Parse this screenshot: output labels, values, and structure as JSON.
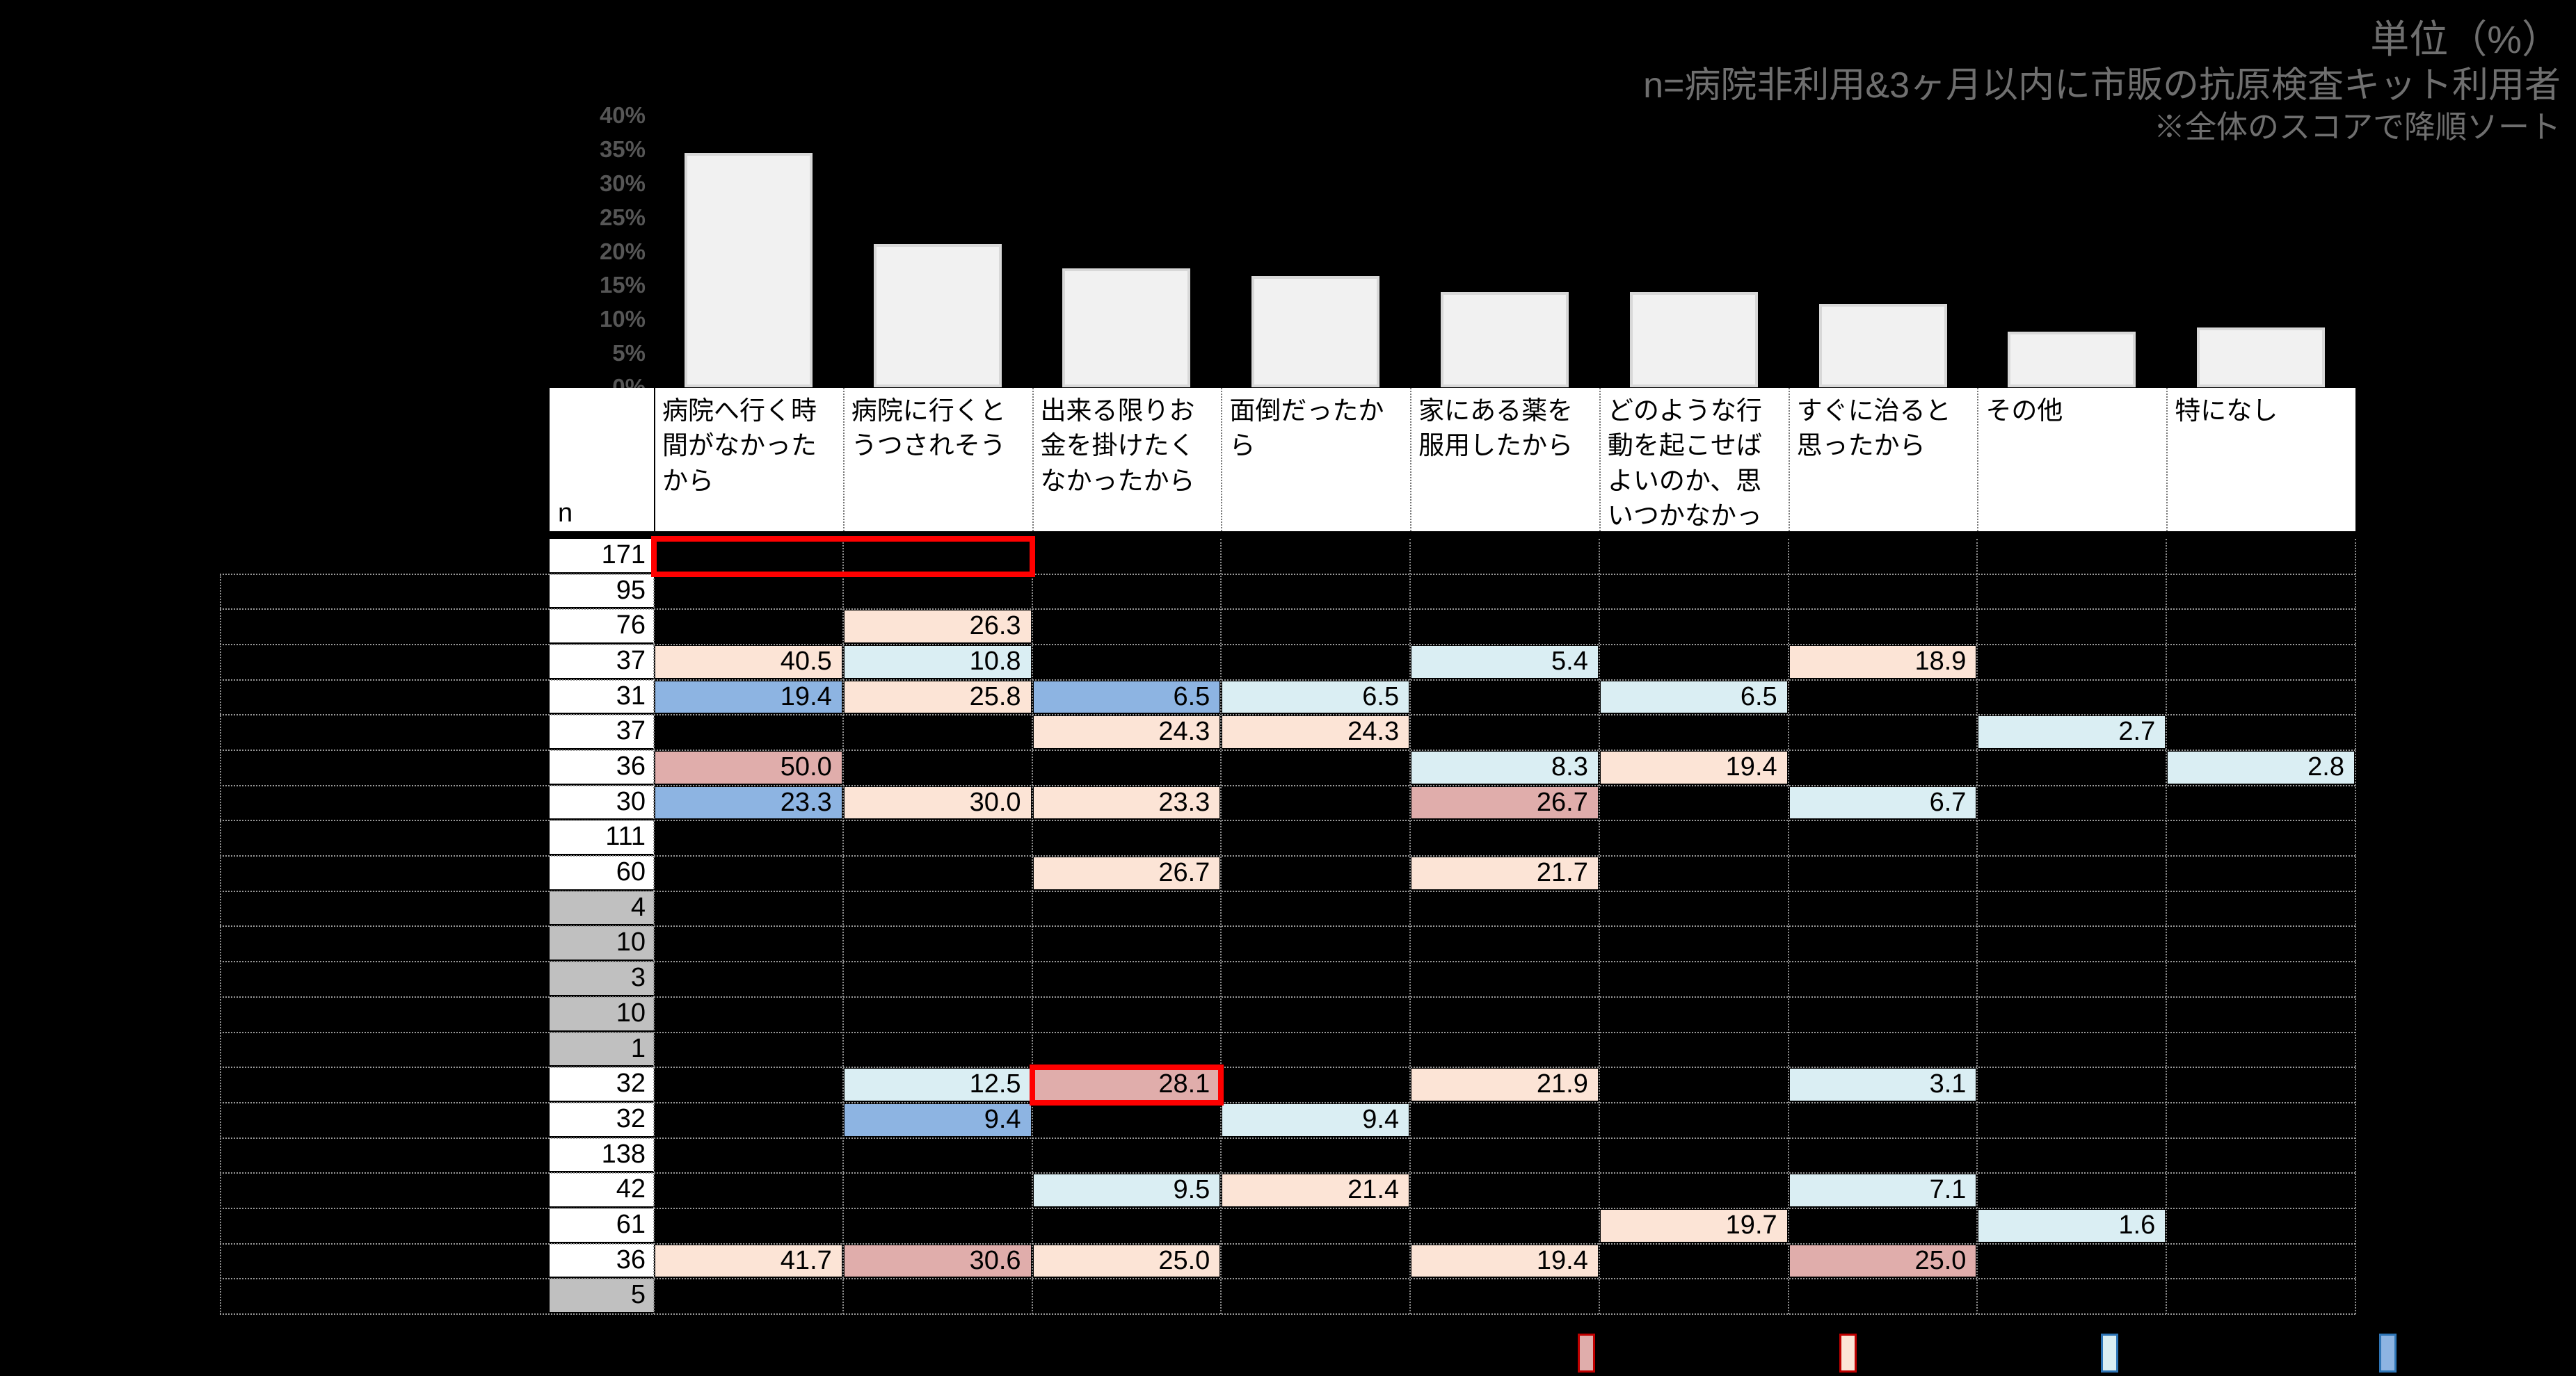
{
  "annotations": {
    "unit": "単位（%）",
    "n_definition": "n=病院非利用&3ヶ月以内に市販の抗原検査キット利用者",
    "sort_note": "※全体のスコアで降順ソート"
  },
  "chart_data": {
    "type": "bar",
    "title": "",
    "categories": [
      "病院へ行く時間がなかったから",
      "病院に行くとうつされそう",
      "出来る限りお金を掛けたくなかったから",
      "面倒だったから",
      "家にある薬を服用したから",
      "どのような行動を起こせばよいのか、思いつかなかったから",
      "すぐに治ると思ったから",
      "その他",
      "特になし"
    ],
    "values": [
      34.5,
      21.1,
      17.5,
      16.4,
      14.0,
      14.0,
      12.3,
      8.2,
      8.8
    ],
    "ylim": [
      0,
      40
    ],
    "yticks": [
      "0%",
      "5%",
      "10%",
      "15%",
      "20%",
      "25%",
      "30%",
      "35%",
      "40%"
    ],
    "bar_color": "#f1f1f1",
    "grid": false,
    "legend_position": "none"
  },
  "palette": {
    "peach": "#fce4d6",
    "lightblue": "#daeef3",
    "blue": "#8db4e2",
    "rose": "#e0adab",
    "gray_n": "#c0c0c0",
    "red_box": "#ff0000"
  },
  "table": {
    "n_header": "n",
    "columns": [
      "病院へ行く時間がなかったから",
      "病院に行くとうつされそう",
      "出来る限りお金を掛けたくなかったから",
      "面倒だったから",
      "家にある薬を服用したから",
      "どのような行動を起こせばよいのか、思いつかなかったから",
      "すぐに治ると思ったから",
      "その他",
      "特になし"
    ],
    "rows": [
      {
        "n": "171",
        "gray": false,
        "cells": []
      },
      {
        "n": "95",
        "gray": false,
        "cells": []
      },
      {
        "n": "76",
        "gray": false,
        "cells": [
          [
            2,
            "26.3",
            "peach"
          ]
        ]
      },
      {
        "n": "37",
        "gray": false,
        "cells": [
          [
            1,
            "40.5",
            "peach"
          ],
          [
            2,
            "10.8",
            "lightblue"
          ],
          [
            5,
            "5.4",
            "lightblue"
          ],
          [
            7,
            "18.9",
            "peach"
          ]
        ]
      },
      {
        "n": "31",
        "gray": false,
        "cells": [
          [
            1,
            "19.4",
            "blue"
          ],
          [
            2,
            "25.8",
            "peach"
          ],
          [
            3,
            "6.5",
            "blue"
          ],
          [
            4,
            "6.5",
            "lightblue"
          ],
          [
            6,
            "6.5",
            "lightblue"
          ]
        ]
      },
      {
        "n": "37",
        "gray": false,
        "cells": [
          [
            3,
            "24.3",
            "peach"
          ],
          [
            4,
            "24.3",
            "peach"
          ],
          [
            8,
            "2.7",
            "lightblue"
          ]
        ]
      },
      {
        "n": "36",
        "gray": false,
        "cells": [
          [
            1,
            "50.0",
            "rose"
          ],
          [
            5,
            "8.3",
            "lightblue"
          ],
          [
            6,
            "19.4",
            "peach"
          ],
          [
            9,
            "2.8",
            "lightblue"
          ]
        ]
      },
      {
        "n": "30",
        "gray": false,
        "cells": [
          [
            1,
            "23.3",
            "blue"
          ],
          [
            2,
            "30.0",
            "peach"
          ],
          [
            3,
            "23.3",
            "peach"
          ],
          [
            5,
            "26.7",
            "rose"
          ],
          [
            7,
            "6.7",
            "lightblue"
          ]
        ]
      },
      {
        "n": "111",
        "gray": false,
        "cells": []
      },
      {
        "n": "60",
        "gray": false,
        "cells": [
          [
            3,
            "26.7",
            "peach"
          ],
          [
            5,
            "21.7",
            "peach"
          ]
        ]
      },
      {
        "n": "4",
        "gray": true,
        "cells": []
      },
      {
        "n": "10",
        "gray": true,
        "cells": []
      },
      {
        "n": "3",
        "gray": true,
        "cells": []
      },
      {
        "n": "10",
        "gray": true,
        "cells": []
      },
      {
        "n": "1",
        "gray": true,
        "cells": []
      },
      {
        "n": "32",
        "gray": false,
        "cells": [
          [
            2,
            "12.5",
            "lightblue"
          ],
          [
            3,
            "28.1",
            "rose"
          ],
          [
            5,
            "21.9",
            "peach"
          ],
          [
            7,
            "3.1",
            "lightblue"
          ]
        ]
      },
      {
        "n": "32",
        "gray": false,
        "cells": [
          [
            2,
            "9.4",
            "blue"
          ],
          [
            4,
            "9.4",
            "lightblue"
          ]
        ]
      },
      {
        "n": "138",
        "gray": false,
        "cells": []
      },
      {
        "n": "42",
        "gray": false,
        "cells": [
          [
            3,
            "9.5",
            "lightblue"
          ],
          [
            4,
            "21.4",
            "peach"
          ],
          [
            7,
            "7.1",
            "lightblue"
          ]
        ]
      },
      {
        "n": "61",
        "gray": false,
        "cells": [
          [
            6,
            "19.7",
            "peach"
          ],
          [
            8,
            "1.6",
            "lightblue"
          ]
        ]
      },
      {
        "n": "36",
        "gray": false,
        "cells": [
          [
            1,
            "41.7",
            "peach"
          ],
          [
            2,
            "30.6",
            "rose"
          ],
          [
            3,
            "25.0",
            "peach"
          ],
          [
            5,
            "19.4",
            "peach"
          ],
          [
            7,
            "25.0",
            "rose"
          ]
        ]
      },
      {
        "n": "5",
        "gray": true,
        "cells": []
      }
    ],
    "red_boxes": [
      {
        "row": 0,
        "col_start": 1,
        "col_end": 2
      },
      {
        "row": 15,
        "col_start": 3,
        "col_end": 3
      }
    ]
  },
  "legend": {
    "chips": [
      {
        "name": "significantly-high-strong",
        "fill": "rose",
        "border": "#c00000"
      },
      {
        "name": "significantly-high",
        "fill": "peach",
        "border": "#c00000"
      },
      {
        "name": "significantly-low",
        "fill": "lightblue",
        "border": "#2e75b6"
      },
      {
        "name": "significantly-low-strong",
        "fill": "blue",
        "border": "#2e75b6"
      }
    ]
  }
}
